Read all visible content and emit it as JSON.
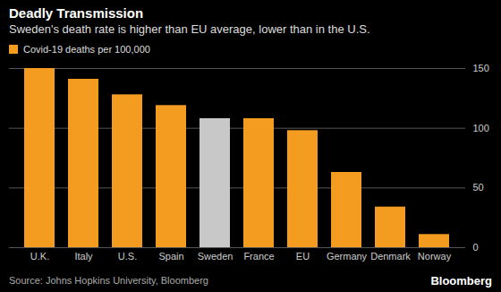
{
  "chart_data": {
    "type": "bar",
    "title": "Deadly Transmission",
    "subtitle": "Sweden's death rate is higher than EU average, lower than in the U.S.",
    "categories": [
      "U.K.",
      "Italy",
      "U.S.",
      "Spain",
      "Sweden",
      "France",
      "EU",
      "Germany",
      "Denmark",
      "Norway"
    ],
    "series": [
      {
        "name": "Covid-19 deaths per 100,000",
        "color": "#f39c1f",
        "colors": [
          "#f39c1f",
          "#f39c1f",
          "#f39c1f",
          "#f39c1f",
          "#c8c8c8",
          "#f39c1f",
          "#f39c1f",
          "#f39c1f",
          "#f39c1f",
          "#f39c1f"
        ],
        "values": [
          150,
          141,
          128,
          119,
          108,
          108,
          98,
          63,
          34,
          11
        ]
      }
    ],
    "ylim": [
      0,
      150
    ],
    "yticks": [
      0,
      50,
      100,
      150
    ],
    "grid": true,
    "legend": "top-left",
    "source": "Source: Johns Hopkins University, Bloomberg",
    "credit": "Bloomberg"
  }
}
